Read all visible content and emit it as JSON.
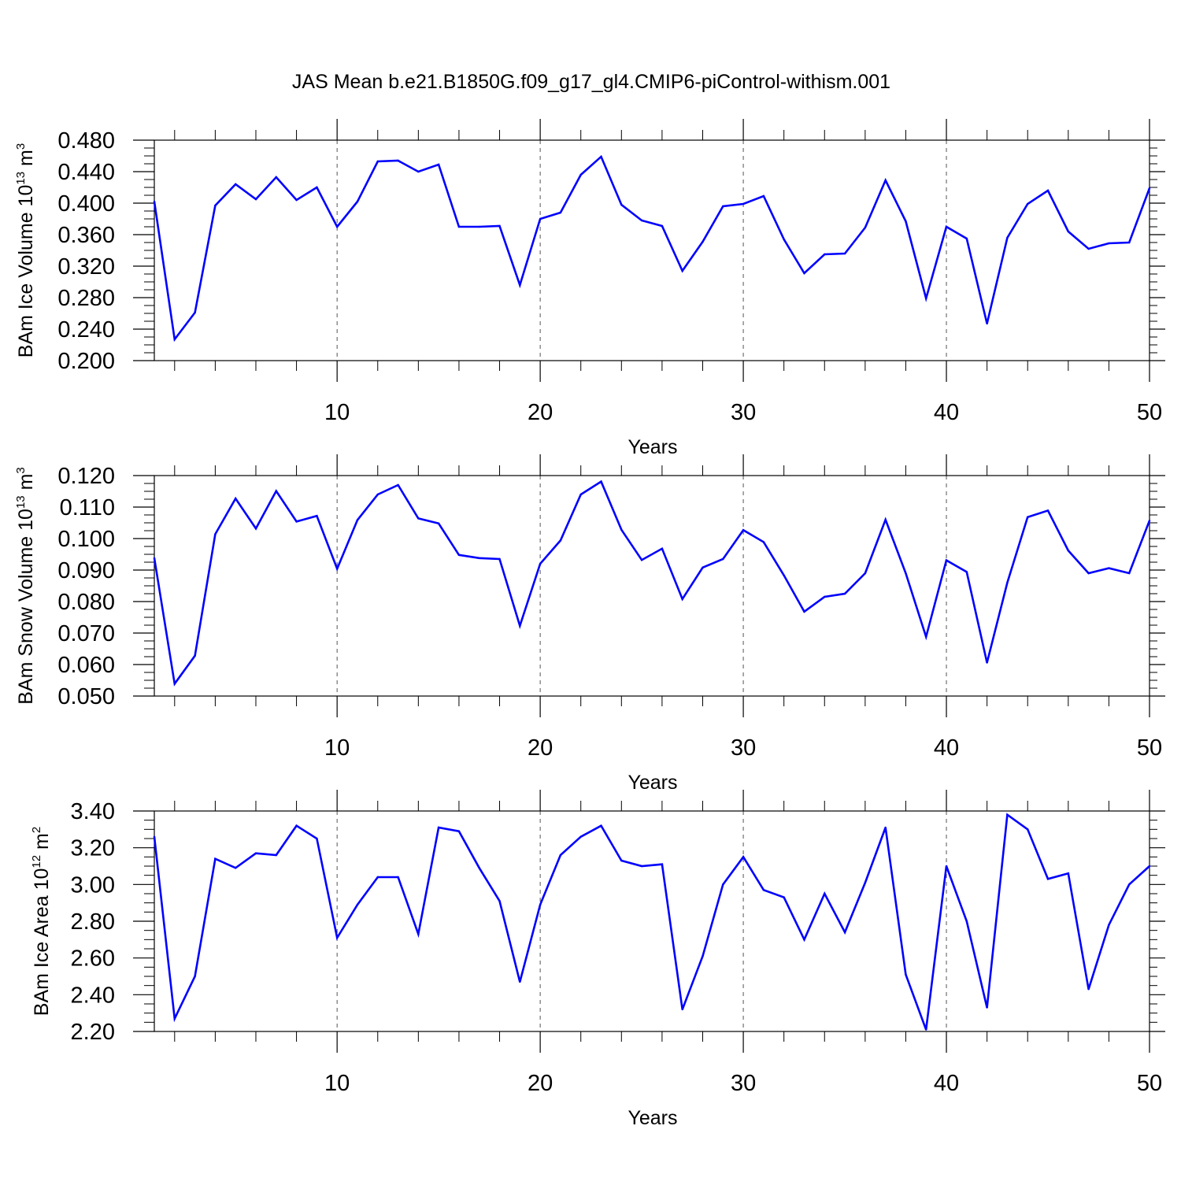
{
  "title": "JAS Mean b.e21.B1850G.f09_g17_gl4.CMIP6-piControl-withism.001",
  "colors": {
    "line": "#0000ff",
    "axis": "#000000",
    "grid": "#555555"
  },
  "chart_data": [
    {
      "type": "line",
      "ylabel": {
        "text": "BAm Ice Volume 10",
        "exponent": "13",
        "unit": " m",
        "unit_exponent": "3"
      },
      "xlabel": "Years",
      "xlim": [
        1,
        50
      ],
      "ylim": [
        0.2,
        0.48
      ],
      "yticks": [
        "0.200",
        "0.240",
        "0.280",
        "0.320",
        "0.360",
        "0.400",
        "0.440",
        "0.480"
      ],
      "xticks": [
        "10",
        "20",
        "30",
        "40",
        "50"
      ],
      "vertical_gridlines": [
        10,
        20,
        30,
        40
      ],
      "x": [
        1,
        2,
        3,
        4,
        5,
        6,
        7,
        8,
        9,
        10,
        11,
        12,
        13,
        14,
        15,
        16,
        17,
        18,
        19,
        20,
        21,
        22,
        23,
        24,
        25,
        26,
        27,
        28,
        29,
        30,
        31,
        32,
        33,
        34,
        35,
        36,
        37,
        38,
        39,
        40,
        41,
        42,
        43,
        44,
        45,
        46,
        47,
        48,
        49,
        50
      ],
      "values": [
        0.402,
        0.227,
        0.261,
        0.397,
        0.424,
        0.405,
        0.433,
        0.404,
        0.42,
        0.37,
        0.402,
        0.453,
        0.454,
        0.44,
        0.449,
        0.37,
        0.37,
        0.371,
        0.296,
        0.38,
        0.388,
        0.436,
        0.459,
        0.398,
        0.378,
        0.371,
        0.314,
        0.351,
        0.396,
        0.399,
        0.409,
        0.354,
        0.311,
        0.335,
        0.336,
        0.369,
        0.429,
        0.377,
        0.279,
        0.37,
        0.355,
        0.247,
        0.356,
        0.399,
        0.416,
        0.364,
        0.342,
        0.349,
        0.35,
        0.419
      ]
    },
    {
      "type": "line",
      "ylabel": {
        "text": "BAm Snow Volume 10",
        "exponent": "13",
        "unit": " m",
        "unit_exponent": "3"
      },
      "xlabel": "Years",
      "xlim": [
        1,
        50
      ],
      "ylim": [
        0.05,
        0.12
      ],
      "yticks": [
        "0.050",
        "0.060",
        "0.070",
        "0.080",
        "0.090",
        "0.100",
        "0.110",
        "0.120"
      ],
      "xticks": [
        "10",
        "20",
        "30",
        "40",
        "50"
      ],
      "vertical_gridlines": [
        10,
        20,
        30,
        40
      ],
      "x": [
        1,
        2,
        3,
        4,
        5,
        6,
        7,
        8,
        9,
        10,
        11,
        12,
        13,
        14,
        15,
        16,
        17,
        18,
        19,
        20,
        21,
        22,
        23,
        24,
        25,
        26,
        27,
        28,
        29,
        30,
        31,
        32,
        33,
        34,
        35,
        36,
        37,
        38,
        39,
        40,
        41,
        42,
        43,
        44,
        45,
        46,
        47,
        48,
        49,
        50
      ],
      "values": [
        0.0938,
        0.0539,
        0.0628,
        0.1014,
        0.1127,
        0.1032,
        0.1151,
        0.1054,
        0.1072,
        0.0904,
        0.1059,
        0.114,
        0.117,
        0.1064,
        0.1048,
        0.0948,
        0.0938,
        0.0935,
        0.0723,
        0.092,
        0.0994,
        0.114,
        0.1181,
        0.1028,
        0.0932,
        0.0968,
        0.0808,
        0.0908,
        0.0935,
        0.1027,
        0.0989,
        0.0883,
        0.0768,
        0.0815,
        0.0825,
        0.089,
        0.106,
        0.089,
        0.0688,
        0.0931,
        0.0894,
        0.0606,
        0.086,
        0.1068,
        0.1089,
        0.0962,
        0.089,
        0.0906,
        0.089,
        0.1057
      ]
    },
    {
      "type": "line",
      "ylabel": {
        "text": "BAm Ice Area 10",
        "exponent": "12",
        "unit": " m",
        "unit_exponent": "2"
      },
      "xlabel": "Years",
      "xlim": [
        1,
        50
      ],
      "ylim": [
        2.2,
        3.4
      ],
      "yticks": [
        "2.20",
        "2.40",
        "2.60",
        "2.80",
        "3.00",
        "3.20",
        "3.40"
      ],
      "xticks": [
        "10",
        "20",
        "30",
        "40",
        "50"
      ],
      "vertical_gridlines": [
        10,
        20,
        30,
        40
      ],
      "x": [
        1,
        2,
        3,
        4,
        5,
        6,
        7,
        8,
        9,
        10,
        11,
        12,
        13,
        14,
        15,
        16,
        17,
        18,
        19,
        20,
        21,
        22,
        23,
        24,
        25,
        26,
        27,
        28,
        29,
        30,
        31,
        32,
        33,
        34,
        35,
        36,
        37,
        38,
        39,
        40,
        41,
        42,
        43,
        44,
        45,
        46,
        47,
        48,
        49,
        50
      ],
      "values": [
        3.26,
        2.27,
        2.5,
        3.14,
        3.09,
        3.17,
        3.16,
        3.32,
        3.25,
        2.71,
        2.89,
        3.04,
        3.04,
        2.73,
        3.31,
        3.29,
        3.09,
        2.91,
        2.47,
        2.89,
        3.16,
        3.26,
        3.32,
        3.13,
        3.1,
        3.11,
        2.32,
        2.61,
        3.0,
        3.15,
        2.97,
        2.93,
        2.7,
        2.95,
        2.74,
        3.01,
        3.31,
        2.51,
        2.21,
        3.1,
        2.8,
        2.33,
        3.38,
        3.3,
        3.03,
        3.06,
        2.43,
        2.78,
        3.0,
        3.1
      ]
    }
  ]
}
